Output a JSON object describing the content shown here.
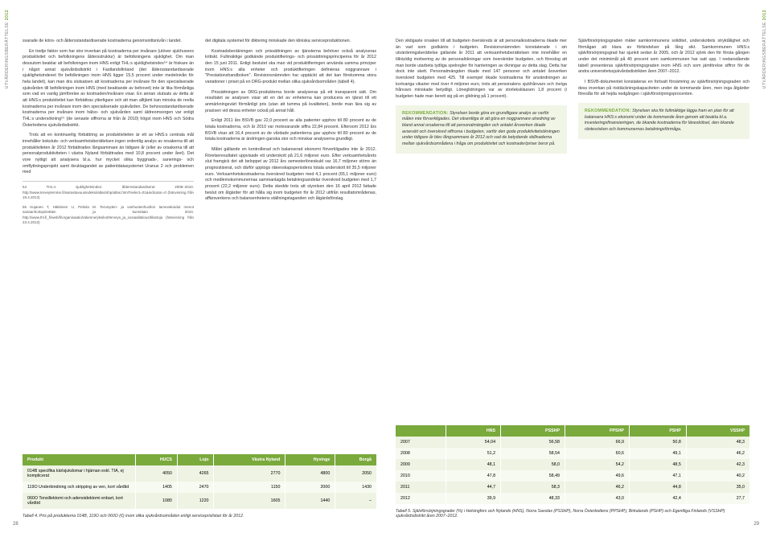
{
  "sideLabel": {
    "text": "UTVÄRDERINGSBERÄTTELSE",
    "year": "2012"
  },
  "left": {
    "col1": {
      "p1": "svarade de köns- och åldersstandardiserade kostnaderna genomsnittsnivån i landet.",
      "p2": "En tredje faktor som har stor inverkan på kostnaderna per invånare (utöver sjukhusens produktivitet och befolkningens åldersstruktur) är befolkningens sjuklighet. Om man dessutom beaktar att befolkningen inom HNS enligt THL:s sjuklighetsindex⁵⁴ är friskare än i något annat sjukvårdsdistrikt i Fastlandsfinland (det åldersstandardiserade sjuklighetsindexet för befolkningen inom HNS ligger 15,5 procent under medelnivån för hela landet), kan man dra slutsatsen att kostnaderna per invånare för den specialiserade sjukvården till befolkningen inom HNS (med beaktande av behovet) inte är lika förmånliga som vad en vanlig jämförelse av kostnaden/invånare visar. En annan slutsats av detta är att HNS:s produktivitet kan förbättras ytterligare och att man alltjämt kan minska de reella kostnaderna per invånare inom den specialiserade sjukvården. De behovsstandardiserade kostnaderna per invånare inom hälso- och sjukvården samt äldreomsorgen var enligt THL:s undersökning⁵⁵ (de senaste siffrorna är från år 2010) högst inom HNS och Södra Österbottens sjukvårdsdistrikt.",
      "p3": "Trots att en kontinuerlig förbättring av produktiviteten är ett av HNS:s centrala mål innehåller boksluts- och verksamhetsberättelsen ingen ordentlig analys av orsakerna till att produktiviteten år 2012 förbättrades långsammare än tidigare år (eller av orsakerna till att personalproduktiviteten i västra Nyland förbättrades med 10,8 procent under året). Det vore nyttigt att analysera bl.a. hur mycket olika byggnads-, sanerings- och omflyttningsprojekt samt ibruktagandet av patientdatasystemet Uranus 2 och problemen med",
      "fn1": "54  THL:s sjuklighetsindex: åldersstandardiserat 2008–2010. http://www.terveytemme.fi/sairastavuusindeksi/atlas/shp/atlas.html?select=01&indicator=0 (hänvisning från 19.4.2013)",
      "fn2": "55  Hujanen T, Häkkinen U, Peltola M. Terveyden- ja vanhustenhuollon tarvevakoidut menot sairaanhoitopiirettäin ja kunnittain 2010. http://www.thl.fi_fi/web/fi/organisaatio/rakenne/yksikot/terveys_ja_sosiaalitalous/tilastoja (hänvisning från 23.4.2013)"
    },
    "col2": {
      "p1": "det digitala systemet för diktering minskade den kliniska serviceproduktionen.",
      "p2": "Kostnadsberäkningen och prissättningen av tjänsterna behöver också analyseras kritiskt. Fullmäktige godkände produktifierings- och prissättningsprinciperna för år 2012 den 15 juni 2011. Enligt beslutet ska man vid produktifieringen använda samma principer inom HNS:s alla enheter och produktifieringen definieras noggrannare i \"Prestationshandboken\". Revisionsnämnden har upptäckt att det kan förekomma stora variationer i priset på en DRG-produkt mellan olika sjukvårdsområden (tabell 4).",
      "p3": "Prissättningen av DRG-produkterna borde analyseras på ett transparent sätt. Om resultatet av analysen visar att en del av enheterna kan producera en tjänst till ett anmärkningsvärt förmånligt pris (utan att tumma på kvaliteten), borde man lära sig av praxisen vid dessa enheter också på annat håll.",
      "p4": "Enligt 2011 års BSVB gav 22,0 procent av alla patienter upphov till 80 procent av de totala kostnaderna, och år 2010 var motsvarande siffra 22,84 procent. Eftersom 2012 års BSVB visar att 16,4 procent av de vårdade patienterna gav upphov till 80 procent av de totala kostnaderna är ändringen ganska stor och minskar analyserna grundligt.",
      "p5": "Målet gällande en kontrollerad och balanserad ekonomi förverkligades inte år 2012. Rörelseresultatet uppvisade ett underskott på 21,6 miljoner euro. Efter verksamhetsårets slut framgick det att beloppet av 2012 års semesterlöneskuld var 16,7 miljoner större än prognostiserat, och därför upptogs räkenskapsperiodens totala underskott till 35,5 miljoner euro. Verksamhetskostnaderna överskred budgeten med 4,1 procent (65,1 miljoner euro) och medlemskommunernas sammanlagda betalningsandelar överskred budgeten med 1,7 procent (22,2 miljoner euro). Detta skedde trots att styrelsen den 16 april 2012 fattade beslut om åtgärder för att hålla sig inom budgeten för år 2012 utifrån resultatområdenas, affärsverkens och balansenhetens ställningstaganden och åtgärdsförslag."
    },
    "table": {
      "headers": [
        "Produkt",
        "HUCS",
        "Lojo",
        "Västra Nyland",
        "Hyvinge",
        "Borgå"
      ],
      "rows": [
        {
          "label": "014B specifika kärlsjukdomar i hjärnan exkl. TIA, ej komplicerat",
          "cells": [
            "4050",
            "4265",
            "2770",
            "4800",
            "2050"
          ]
        },
        {
          "label": "119O Underbindning och stripping av ven, kort vårdtid",
          "cells": [
            "1405",
            "2470",
            "1150",
            "2000",
            "1430"
          ]
        },
        {
          "label": "060O Tonsillektomi och adenoidektomi enbart, kort vårdtid",
          "cells": [
            "1080",
            "1220",
            "1605",
            "1440",
            "–"
          ]
        }
      ],
      "caption": "Tabell 4. Pris på produkterna 014B, 119O och 060O (€) inom olika sjukvårdsområden enligt serviceprislistan för år 2012."
    }
  },
  "right": {
    "col1": {
      "p1": "Den viktigaste orsaken till att budgeten överskreds är att personalkostnaderna ökade mer än vad som godkänts i budgeten. Revisionsnämnden konstaterade i sin utvärderingsberättelse gällande år 2011 att verksamhetsberättelsen inte innehåller en tillräcklig motivering av de personalökningar som överskrider budgeten, och föreslog att man borde utarbeta tydliga spelregler för hanteringen av ökningar av detta slag. Detta har dock inte skett. Personalmängden ökade med 147 personer och antalet årsverken överskred budgeten med 425. Till exempel ökade kostnaderna för användningen av kortvariga vikarier med över 4 miljoner euro, trots att personalens sjukfrånvaro och övriga frånvaro minskade betydligt. Löneglidningen var av storleksklassen 1,8 procent (i budgeten hade man berett sig på en glidning på 1 procent).",
      "rec": "Styrelsen borde göra en grundligare analys av varför målen inte förverkligades. Det väsentliga är att göra en noggrannare utredning av bland annat orsakerna till att personalmängden och antalet årsverken ökade avsevärt och överskred siffrorna i budgeten, varför den goda produktivitetsökningen under tidigare år blev långsammare år 2012 och vad de betydande skillnaderna mellan sjukvårdsområdena i fråga om produktivitet och kostnader/priser beror på."
    },
    "col2": {
      "p1": "Självförsörjningsgraden mäter samkommunens soliditet, underskottets stryktålighet och förmågan att klara av förbindelser på lång sikt. Samkommunen HNS:s självförsörjningsgrad har sjunkit sedan år 2005, och år 2012 sjönk den för första gången under det minimimål på 40 procent som samkommunen har satt upp. I nedanstående tabell presenteras självförsörjningsgraden inom HNS och som jämförelse siffror för de andra universitetssjukvårdsdistrikten åren 2007–2012.",
      "p2": "I BSVB-dokumentet konstateras en fortsatt försämring av självförsörjningsgraden och dess inverkan på risktäckningskapaciteten under de kommande åren, men inga åtgärder föreslås för att hejda nedgången i självförsörjningsprocenten.",
      "rec": "Styrelsen ska för fullmäktige lägga fram en plan för att balansera HNS:s ekonomi under de kommande åren genom att beakta bl.a. investeringsfinansieringen, de ökande kostnaderna för läneskötsel, den ökande räntesrisken och kommunernas betalningsförmåga."
    },
    "table": {
      "headers": [
        "",
        "HNS",
        "PSSHP",
        "PPSHP",
        "PSHP",
        "VSSHP"
      ],
      "rows": [
        [
          "2007",
          "54,04",
          "56,58",
          "66,9",
          "50,8",
          "48,3"
        ],
        [
          "2008",
          "51,2",
          "58,54",
          "60,6",
          "49,1",
          "46,2"
        ],
        [
          "2009",
          "48,1",
          "58,0",
          "54,2",
          "48,5",
          "42,3"
        ],
        [
          "2010",
          "47,8",
          "58,49",
          "49,6",
          "47,1",
          "40,2"
        ],
        [
          "2011",
          "44,7",
          "58,3",
          "46,2",
          "44,8",
          "35,0"
        ],
        [
          "2012",
          "39,9",
          "48,33",
          "43,0",
          "42,4",
          "27,7"
        ]
      ],
      "caption": "Tabell 5. Självförsörjningsgrader (%) i Helsingfors och Nylands (HNS), Norra Savolax (PSSHP), Norra Österbottens (PPSHP), Birkalands (PSHP) och Egentliga Finlands (VSSHP) sjukvårdsdistrikt åren 2007–2012."
    }
  },
  "recLabel": "REKOMMENDATION:",
  "pageLeft": "28",
  "pageRight": "29"
}
